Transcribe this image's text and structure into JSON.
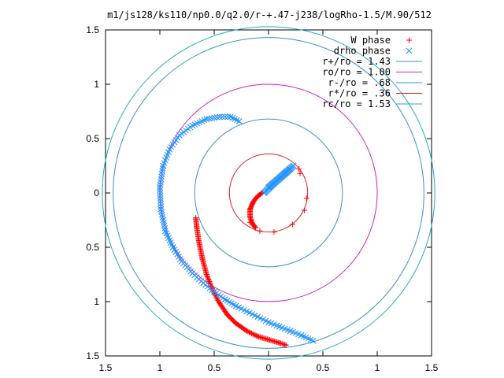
{
  "chart_data": {
    "type": "scatter",
    "title": "m1/js128/ks110/np0.0/q2.0/r-+.47-j238/logRho-1.5/M.90/512",
    "xlim": [
      -1.5,
      1.5
    ],
    "ylim": [
      -1.5,
      1.5
    ],
    "x_ticks": [
      -1.5,
      -1,
      -0.5,
      0,
      0.5,
      1,
      1.5
    ],
    "x_tick_labels": [
      "1.5",
      "1",
      "0.5",
      "0",
      "0.5",
      "1",
      "1.5"
    ],
    "y_ticks": [
      1.5,
      1,
      0.5,
      0,
      -0.5,
      -1,
      -1.5
    ],
    "y_tick_labels": [
      "1.5",
      "1",
      "0.5",
      "0",
      "0.5",
      "1",
      "1.5"
    ],
    "grid": false,
    "legend_position": "top-right",
    "circles": [
      {
        "name": "r+/ro = 1.43",
        "radius": 1.43,
        "color": "#3a8fd8"
      },
      {
        "name": "ro/ro = 1.00",
        "radius": 1.0,
        "color": "#cc22cc"
      },
      {
        "name": "r-/ro = .68",
        "radius": 0.68,
        "color": "#3a8fd8"
      },
      {
        "name": "r*/ro = .36",
        "radius": 0.36,
        "color": "#dd2222"
      },
      {
        "name": "rc/ro = 1.53",
        "radius": 1.53,
        "color": "#22aacc"
      }
    ],
    "series": [
      {
        "name": "W phase",
        "marker": "plus",
        "color": "#ff0000",
        "points": [
          [
            0.16,
            -1.4
          ],
          [
            0.1,
            -1.38
          ],
          [
            0.0,
            -1.35
          ],
          [
            -0.1,
            -1.32
          ],
          [
            -0.2,
            -1.27
          ],
          [
            -0.3,
            -1.2
          ],
          [
            -0.38,
            -1.12
          ],
          [
            -0.46,
            -1.0
          ],
          [
            -0.52,
            -0.88
          ],
          [
            -0.57,
            -0.75
          ],
          [
            -0.61,
            -0.6
          ],
          [
            -0.64,
            -0.45
          ],
          [
            -0.66,
            -0.32
          ],
          [
            -0.67,
            -0.23
          ],
          [
            -0.17,
            -0.27
          ],
          [
            -0.08,
            -0.35
          ],
          [
            0.05,
            -0.36
          ],
          [
            0.22,
            -0.29
          ],
          [
            0.33,
            -0.16
          ],
          [
            0.35,
            -0.05
          ],
          [
            0.29,
            0.18
          ],
          [
            0.28,
            0.22
          ],
          [
            -0.12,
            -0.32
          ],
          [
            -0.15,
            -0.28
          ],
          [
            -0.17,
            -0.22
          ],
          [
            -0.17,
            -0.15
          ],
          [
            -0.14,
            -0.08
          ],
          [
            -0.1,
            -0.03
          ],
          [
            -0.06,
            0.0
          ]
        ]
      },
      {
        "name": "drho phase",
        "marker": "cross",
        "color": "#1e90ff",
        "points": [
          [
            0.41,
            -1.36
          ],
          [
            0.3,
            -1.31
          ],
          [
            0.2,
            -1.27
          ],
          [
            0.1,
            -1.23
          ],
          [
            0.0,
            -1.19
          ],
          [
            -0.1,
            -1.14
          ],
          [
            -0.2,
            -1.09
          ],
          [
            -0.3,
            -1.04
          ],
          [
            -0.4,
            -0.98
          ],
          [
            -0.5,
            -0.91
          ],
          [
            -0.6,
            -0.83
          ],
          [
            -0.7,
            -0.74
          ],
          [
            -0.8,
            -0.63
          ],
          [
            -0.88,
            -0.5
          ],
          [
            -0.95,
            -0.35
          ],
          [
            -0.99,
            -0.15
          ],
          [
            -1.0,
            0.05
          ],
          [
            -0.97,
            0.25
          ],
          [
            -0.91,
            0.4
          ],
          [
            -0.82,
            0.53
          ],
          [
            -0.7,
            0.62
          ],
          [
            -0.57,
            0.68
          ],
          [
            -0.45,
            0.7
          ],
          [
            -0.35,
            0.7
          ],
          [
            -0.27,
            0.66
          ],
          [
            0.0,
            0.05
          ],
          [
            0.08,
            0.12
          ],
          [
            0.16,
            0.19
          ],
          [
            0.23,
            0.25
          ],
          [
            -0.04,
            0.0
          ],
          [
            0.04,
            0.08
          ],
          [
            0.12,
            0.15
          ],
          [
            0.2,
            0.22
          ]
        ]
      }
    ]
  }
}
